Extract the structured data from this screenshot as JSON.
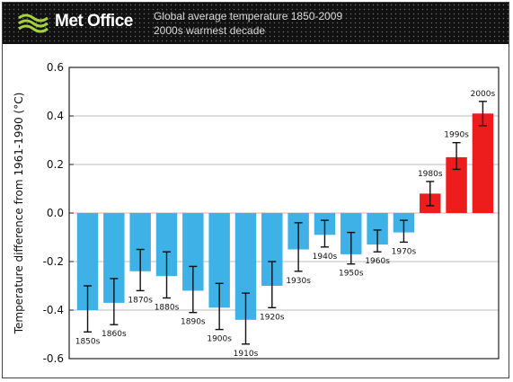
{
  "header": {
    "brand": "Met Office",
    "title_line1": "Global average temperature 1850-2009",
    "title_line2": "2000s warmest decade"
  },
  "colors": {
    "cool_bar": "#3eb1e7",
    "warm_bar": "#ee1d1d",
    "header_bg": "#111111"
  },
  "chart_data": {
    "type": "bar",
    "ylabel": "Temperature difference from 1961-1990 (°C)",
    "ylim": [
      -0.6,
      0.6
    ],
    "yticks": [
      "-0.6",
      "-0.4",
      "-0.2",
      "0.0",
      "0.2",
      "0.4",
      "0.6"
    ],
    "grid": true,
    "categories": [
      "1850s",
      "1860s",
      "1870s",
      "1880s",
      "1890s",
      "1900s",
      "1910s",
      "1920s",
      "1930s",
      "1940s",
      "1950s",
      "1960s",
      "1970s",
      "1980s",
      "1990s",
      "2000s"
    ],
    "values": [
      -0.4,
      -0.37,
      -0.24,
      -0.26,
      -0.32,
      -0.39,
      -0.44,
      -0.3,
      -0.15,
      -0.09,
      -0.17,
      -0.13,
      -0.08,
      0.08,
      0.23,
      0.41
    ],
    "errors": [
      [
        -0.49,
        -0.3
      ],
      [
        -0.46,
        -0.27
      ],
      [
        -0.32,
        -0.15
      ],
      [
        -0.35,
        -0.16
      ],
      [
        -0.41,
        -0.22
      ],
      [
        -0.48,
        -0.29
      ],
      [
        -0.54,
        -0.33
      ],
      [
        -0.39,
        -0.2
      ],
      [
        -0.24,
        -0.04
      ],
      [
        -0.14,
        -0.03
      ],
      [
        -0.21,
        -0.08
      ],
      [
        -0.16,
        -0.07
      ],
      [
        -0.12,
        -0.03
      ],
      [
        0.03,
        0.13
      ],
      [
        0.18,
        0.29
      ],
      [
        0.36,
        0.46
      ]
    ]
  }
}
